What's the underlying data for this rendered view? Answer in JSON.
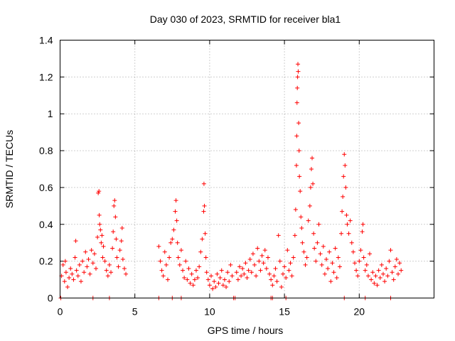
{
  "chart_data": {
    "type": "scatter",
    "title": "Day 030 of 2023, SRMTID for receiver bla1",
    "xlabel": "GPS time / hours",
    "ylabel": "SRMTID / TECUs",
    "xlim": [
      0,
      25
    ],
    "ylim": [
      0,
      1.4
    ],
    "xticks": [
      0,
      5,
      10,
      15,
      20
    ],
    "yticks": [
      0,
      0.2,
      0.4,
      0.6,
      0.8,
      1,
      1.2,
      1.4
    ],
    "xtick_labels": [
      "0",
      "5",
      "10",
      "15",
      "20"
    ],
    "ytick_labels": [
      "0",
      "0.2",
      "0.4",
      "0.6",
      "0.8",
      "1",
      "1.2",
      "1.4"
    ],
    "grid": true,
    "marker": "+",
    "color": "#ff0000",
    "series": [
      {
        "name": "SRMTID",
        "points": [
          [
            0.1,
            0.12
          ],
          [
            0.2,
            0.18
          ],
          [
            0.3,
            0.09
          ],
          [
            0.35,
            0.2
          ],
          [
            0.4,
            0.14
          ],
          [
            0.5,
            0.06
          ],
          [
            0.6,
            0.11
          ],
          [
            0.7,
            0.16
          ],
          [
            0.8,
            0.13
          ],
          [
            0.9,
            0.1
          ],
          [
            1.0,
            0.22
          ],
          [
            1.05,
            0.31
          ],
          [
            1.1,
            0.15
          ],
          [
            1.2,
            0.12
          ],
          [
            1.3,
            0.18
          ],
          [
            1.4,
            0.09
          ],
          [
            1.5,
            0.2
          ],
          [
            1.6,
            0.14
          ],
          [
            1.7,
            0.25
          ],
          [
            1.8,
            0.17
          ],
          [
            1.9,
            0.21
          ],
          [
            2.0,
            0.13
          ],
          [
            2.1,
            0.26
          ],
          [
            2.2,
            0.19
          ],
          [
            2.3,
            0.24
          ],
          [
            2.4,
            0.16
          ],
          [
            2.5,
            0.33
          ],
          [
            2.55,
            0.57
          ],
          [
            2.6,
            0.58
          ],
          [
            2.62,
            0.45
          ],
          [
            2.65,
            0.4
          ],
          [
            2.7,
            0.37
          ],
          [
            2.75,
            0.3
          ],
          [
            2.8,
            0.34
          ],
          [
            2.85,
            0.22
          ],
          [
            2.9,
            0.28
          ],
          [
            3.0,
            0.2
          ],
          [
            3.1,
            0.15
          ],
          [
            3.2,
            0.12
          ],
          [
            3.3,
            0.18
          ],
          [
            3.4,
            0.14
          ],
          [
            3.5,
            0.27
          ],
          [
            3.55,
            0.36
          ],
          [
            3.6,
            0.5
          ],
          [
            3.65,
            0.53
          ],
          [
            3.7,
            0.44
          ],
          [
            3.75,
            0.32
          ],
          [
            3.8,
            0.22
          ],
          [
            3.9,
            0.17
          ],
          [
            4.0,
            0.26
          ],
          [
            4.1,
            0.31
          ],
          [
            4.15,
            0.38
          ],
          [
            4.2,
            0.21
          ],
          [
            4.3,
            0.16
          ],
          [
            4.4,
            0.13
          ],
          [
            6.6,
            0.28
          ],
          [
            6.7,
            0.2
          ],
          [
            6.8,
            0.15
          ],
          [
            6.9,
            0.12
          ],
          [
            7.0,
            0.25
          ],
          [
            7.1,
            0.18
          ],
          [
            7.2,
            0.1
          ],
          [
            7.3,
            0.22
          ],
          [
            7.4,
            0.3
          ],
          [
            7.5,
            0.32
          ],
          [
            7.6,
            0.37
          ],
          [
            7.7,
            0.47
          ],
          [
            7.75,
            0.53
          ],
          [
            7.8,
            0.42
          ],
          [
            7.85,
            0.3
          ],
          [
            7.9,
            0.22
          ],
          [
            8.0,
            0.18
          ],
          [
            8.1,
            0.26
          ],
          [
            8.2,
            0.15
          ],
          [
            8.3,
            0.11
          ],
          [
            8.4,
            0.2
          ],
          [
            8.5,
            0.1
          ],
          [
            8.6,
            0.16
          ],
          [
            8.7,
            0.08
          ],
          [
            8.8,
            0.13
          ],
          [
            8.9,
            0.07
          ],
          [
            9.0,
            0.1
          ],
          [
            9.1,
            0.15
          ],
          [
            9.2,
            0.11
          ],
          [
            9.3,
            0.17
          ],
          [
            9.4,
            0.25
          ],
          [
            9.5,
            0.32
          ],
          [
            9.6,
            0.47
          ],
          [
            9.62,
            0.62
          ],
          [
            9.65,
            0.5
          ],
          [
            9.7,
            0.35
          ],
          [
            9.75,
            0.22
          ],
          [
            9.8,
            0.14
          ],
          [
            9.9,
            0.1
          ],
          [
            10.0,
            0.07
          ],
          [
            10.1,
            0.12
          ],
          [
            10.2,
            0.05
          ],
          [
            10.3,
            0.09
          ],
          [
            10.4,
            0.06
          ],
          [
            10.5,
            0.13
          ],
          [
            10.6,
            0.08
          ],
          [
            10.7,
            0.11
          ],
          [
            10.8,
            0.15
          ],
          [
            10.9,
            0.07
          ],
          [
            11.0,
            0.1
          ],
          [
            11.1,
            0.06
          ],
          [
            11.2,
            0.14
          ],
          [
            11.3,
            0.09
          ],
          [
            11.4,
            0.18
          ],
          [
            11.5,
            0.12
          ],
          [
            11.8,
            0.14
          ],
          [
            11.9,
            0.1
          ],
          [
            12.0,
            0.17
          ],
          [
            12.1,
            0.12
          ],
          [
            12.2,
            0.16
          ],
          [
            12.3,
            0.13
          ],
          [
            12.4,
            0.19
          ],
          [
            12.5,
            0.11
          ],
          [
            12.6,
            0.15
          ],
          [
            12.7,
            0.21
          ],
          [
            12.8,
            0.14
          ],
          [
            12.9,
            0.24
          ],
          [
            13.0,
            0.18
          ],
          [
            13.1,
            0.12
          ],
          [
            13.2,
            0.27
          ],
          [
            13.3,
            0.2
          ],
          [
            13.4,
            0.15
          ],
          [
            13.5,
            0.23
          ],
          [
            13.6,
            0.19
          ],
          [
            13.7,
            0.26
          ],
          [
            13.8,
            0.16
          ],
          [
            13.9,
            0.22
          ],
          [
            14.0,
            0.13
          ],
          [
            14.1,
            0.1
          ],
          [
            14.2,
            0.07
          ],
          [
            14.3,
            0.12
          ],
          [
            14.4,
            0.16
          ],
          [
            14.5,
            0.09
          ],
          [
            14.6,
            0.34
          ],
          [
            14.7,
            0.2
          ],
          [
            14.8,
            0.06
          ],
          [
            14.9,
            0.13
          ],
          [
            15.0,
            0.17
          ],
          [
            15.1,
            0.11
          ],
          [
            15.2,
            0.26
          ],
          [
            15.3,
            0.15
          ],
          [
            15.4,
            0.19
          ],
          [
            15.5,
            0.12
          ],
          [
            15.6,
            0.22
          ],
          [
            15.7,
            0.34
          ],
          [
            15.75,
            0.48
          ],
          [
            15.8,
            0.72
          ],
          [
            15.82,
            0.88
          ],
          [
            15.84,
            1.06
          ],
          [
            15.86,
            1.14
          ],
          [
            15.88,
            1.2
          ],
          [
            15.9,
            1.27
          ],
          [
            15.92,
            1.23
          ],
          [
            15.95,
            0.95
          ],
          [
            15.98,
            0.8
          ],
          [
            16.0,
            0.66
          ],
          [
            16.05,
            0.58
          ],
          [
            16.1,
            0.44
          ],
          [
            16.15,
            0.38
          ],
          [
            16.2,
            0.3
          ],
          [
            16.3,
            0.25
          ],
          [
            16.4,
            0.18
          ],
          [
            16.5,
            0.22
          ],
          [
            16.6,
            0.42
          ],
          [
            16.7,
            0.5
          ],
          [
            16.75,
            0.6
          ],
          [
            16.8,
            0.7
          ],
          [
            16.85,
            0.76
          ],
          [
            16.9,
            0.62
          ],
          [
            16.95,
            0.35
          ],
          [
            17.0,
            0.27
          ],
          [
            17.1,
            0.2
          ],
          [
            17.2,
            0.3
          ],
          [
            17.3,
            0.4
          ],
          [
            17.4,
            0.24
          ],
          [
            17.5,
            0.18
          ],
          [
            17.6,
            0.28
          ],
          [
            17.7,
            0.13
          ],
          [
            17.8,
            0.21
          ],
          [
            17.9,
            0.16
          ],
          [
            18.0,
            0.25
          ],
          [
            18.1,
            0.09
          ],
          [
            18.2,
            0.19
          ],
          [
            18.3,
            0.14
          ],
          [
            18.4,
            0.27
          ],
          [
            18.5,
            0.11
          ],
          [
            18.6,
            0.22
          ],
          [
            18.7,
            0.17
          ],
          [
            18.8,
            0.35
          ],
          [
            18.85,
            0.47
          ],
          [
            18.9,
            0.55
          ],
          [
            18.95,
            0.66
          ],
          [
            19.0,
            0.78
          ],
          [
            19.05,
            0.72
          ],
          [
            19.1,
            0.6
          ],
          [
            19.15,
            0.45
          ],
          [
            19.2,
            0.4
          ],
          [
            19.3,
            0.35
          ],
          [
            19.4,
            0.42
          ],
          [
            19.5,
            0.3
          ],
          [
            19.6,
            0.25
          ],
          [
            19.7,
            0.19
          ],
          [
            19.8,
            0.15
          ],
          [
            19.9,
            0.12
          ],
          [
            20.0,
            0.2
          ],
          [
            20.1,
            0.26
          ],
          [
            20.2,
            0.36
          ],
          [
            20.25,
            0.4
          ],
          [
            20.3,
            0.22
          ],
          [
            20.4,
            0.15
          ],
          [
            20.5,
            0.18
          ],
          [
            20.6,
            0.12
          ],
          [
            20.7,
            0.24
          ],
          [
            20.8,
            0.1
          ],
          [
            20.9,
            0.14
          ],
          [
            21.0,
            0.08
          ],
          [
            21.1,
            0.12
          ],
          [
            21.2,
            0.07
          ],
          [
            21.3,
            0.15
          ],
          [
            21.4,
            0.11
          ],
          [
            21.5,
            0.18
          ],
          [
            21.6,
            0.13
          ],
          [
            21.7,
            0.09
          ],
          [
            21.8,
            0.16
          ],
          [
            21.9,
            0.12
          ],
          [
            22.0,
            0.2
          ],
          [
            22.1,
            0.26
          ],
          [
            22.2,
            0.14
          ],
          [
            22.3,
            0.1
          ],
          [
            22.4,
            0.17
          ],
          [
            22.5,
            0.21
          ],
          [
            22.6,
            0.13
          ],
          [
            22.7,
            0.19
          ],
          [
            22.8,
            0.15
          ],
          [
            0.05,
            0.0
          ],
          [
            2.2,
            0.0
          ],
          [
            3.3,
            0.0
          ],
          [
            6.6,
            0.0
          ],
          [
            7.5,
            0.0
          ],
          [
            8.1,
            0.0
          ],
          [
            11.6,
            0.0
          ],
          [
            11.7,
            0.0
          ],
          [
            14.1,
            0.0
          ],
          [
            14.2,
            0.0
          ],
          [
            15.1,
            0.0
          ],
          [
            19.0,
            0.0
          ],
          [
            20.4,
            0.0
          ],
          [
            22.1,
            0.0
          ]
        ]
      }
    ]
  }
}
